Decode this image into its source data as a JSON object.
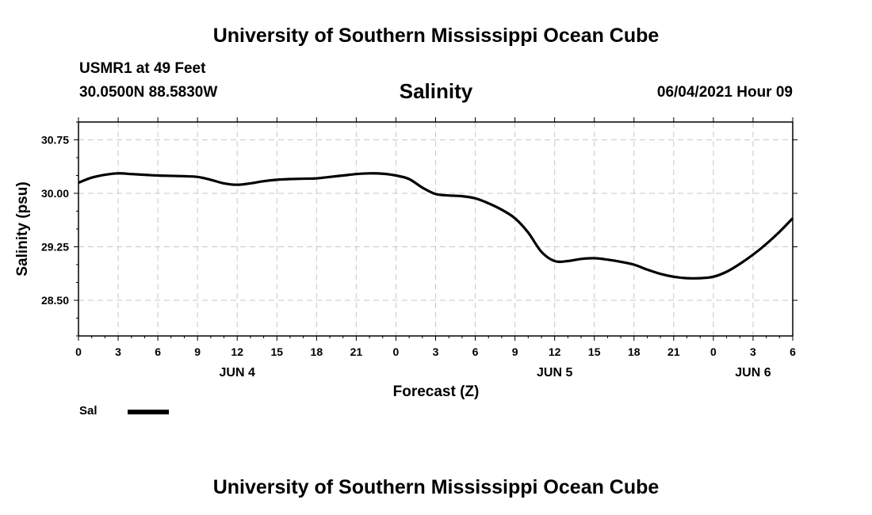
{
  "header": {
    "title": "University of Southern Mississippi Ocean Cube",
    "station": "USMR1 at 49 Feet",
    "coords": "30.0500N  88.5830W",
    "variable": "Salinity",
    "datetime": "06/04/2021 Hour 09"
  },
  "footer": {
    "title": "University of Southern Mississippi Ocean Cube"
  },
  "legend": {
    "label": "Sal",
    "color": "#000000"
  },
  "chart_data": {
    "type": "line",
    "title": "Salinity",
    "xlabel": "Forecast (Z)",
    "ylabel": "Salinity (psu)",
    "xlim": [
      0,
      54
    ],
    "ylim": [
      28.0,
      31.0
    ],
    "grid": true,
    "x_ticks": [
      0,
      3,
      6,
      9,
      12,
      15,
      18,
      21,
      24,
      27,
      30,
      33,
      36,
      39,
      42,
      45,
      48,
      51,
      54
    ],
    "x_tick_labels": [
      "0",
      "3",
      "6",
      "9",
      "12",
      "15",
      "18",
      "21",
      "0",
      "3",
      "6",
      "9",
      "12",
      "15",
      "18",
      "21",
      "0",
      "3",
      "6"
    ],
    "y_ticks": [
      28.5,
      29.25,
      30.0,
      30.75
    ],
    "y_tick_labels": [
      "28.50",
      "29.25",
      "30.00",
      "30.75"
    ],
    "day_labels": [
      {
        "x": 12,
        "label": "JUN 4"
      },
      {
        "x": 36,
        "label": "JUN 5"
      },
      {
        "x": 51,
        "label": "JUN 6"
      }
    ],
    "series": [
      {
        "name": "Sal",
        "color": "#000000",
        "x": [
          0,
          1,
          2,
          3,
          4,
          5,
          6,
          7,
          8,
          9,
          10,
          11,
          12,
          13,
          14,
          15,
          16,
          17,
          18,
          19,
          20,
          21,
          22,
          23,
          24,
          25,
          26,
          27,
          28,
          29,
          30,
          31,
          32,
          33,
          34,
          35,
          36,
          37,
          38,
          39,
          40,
          41,
          42,
          43,
          44,
          45,
          46,
          47,
          48,
          49,
          50,
          51,
          52,
          53,
          54
        ],
        "values": [
          30.15,
          30.22,
          30.26,
          30.28,
          30.27,
          30.26,
          30.25,
          30.245,
          30.24,
          30.23,
          30.19,
          30.14,
          30.12,
          30.14,
          30.17,
          30.19,
          30.2,
          30.205,
          30.21,
          30.23,
          30.25,
          30.27,
          30.28,
          30.275,
          30.25,
          30.2,
          30.08,
          29.99,
          29.97,
          29.96,
          29.93,
          29.86,
          29.77,
          29.65,
          29.45,
          29.18,
          29.05,
          29.05,
          29.08,
          29.09,
          29.07,
          29.04,
          29.0,
          28.93,
          28.87,
          28.83,
          28.81,
          28.81,
          28.83,
          28.9,
          29.01,
          29.14,
          29.29,
          29.46,
          29.65
        ]
      }
    ]
  }
}
